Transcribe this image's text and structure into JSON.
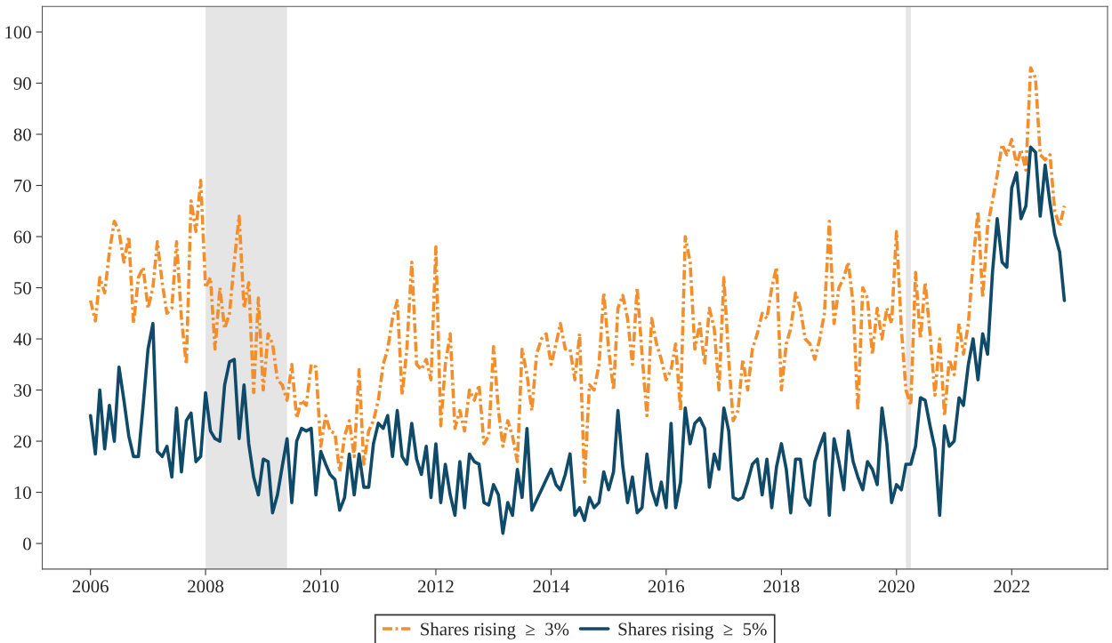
{
  "chart_data": {
    "type": "line",
    "x": [
      "2006-01",
      "2006-02",
      "2006-03",
      "2006-04",
      "2006-05",
      "2006-06",
      "2006-07",
      "2006-08",
      "2006-09",
      "2006-10",
      "2006-11",
      "2006-12",
      "2007-01",
      "2007-02",
      "2007-03",
      "2007-04",
      "2007-05",
      "2007-06",
      "2007-07",
      "2007-08",
      "2007-09",
      "2007-10",
      "2007-11",
      "2007-12",
      "2008-01",
      "2008-02",
      "2008-03",
      "2008-04",
      "2008-05",
      "2008-06",
      "2008-07",
      "2008-08",
      "2008-09",
      "2008-10",
      "2008-11",
      "2008-12",
      "2009-01",
      "2009-02",
      "2009-03",
      "2009-04",
      "2009-05",
      "2009-06",
      "2009-07",
      "2009-08",
      "2009-09",
      "2009-10",
      "2009-11",
      "2009-12",
      "2010-01",
      "2010-02",
      "2010-03",
      "2010-04",
      "2010-05",
      "2010-06",
      "2010-07",
      "2010-08",
      "2010-09",
      "2010-10",
      "2010-11",
      "2010-12",
      "2011-01",
      "2011-02",
      "2011-03",
      "2011-04",
      "2011-05",
      "2011-06",
      "2011-07",
      "2011-08",
      "2011-09",
      "2011-10",
      "2011-11",
      "2011-12",
      "2012-01",
      "2012-02",
      "2012-03",
      "2012-04",
      "2012-05",
      "2012-06",
      "2012-07",
      "2012-08",
      "2012-09",
      "2012-10",
      "2012-11",
      "2012-12",
      "2013-01",
      "2013-02",
      "2013-03",
      "2013-04",
      "2013-05",
      "2013-06",
      "2013-07",
      "2013-08",
      "2013-09",
      "2013-10",
      "2013-11",
      "2013-12",
      "2014-01",
      "2014-02",
      "2014-03",
      "2014-04",
      "2014-05",
      "2014-06",
      "2014-07",
      "2014-08",
      "2014-09",
      "2014-10",
      "2014-11",
      "2014-12",
      "2015-01",
      "2015-02",
      "2015-03",
      "2015-04",
      "2015-05",
      "2015-06",
      "2015-07",
      "2015-08",
      "2015-09",
      "2015-10",
      "2015-11",
      "2015-12",
      "2016-01",
      "2016-02",
      "2016-03",
      "2016-04",
      "2016-05",
      "2016-06",
      "2016-07",
      "2016-08",
      "2016-09",
      "2016-10",
      "2016-11",
      "2016-12",
      "2017-01",
      "2017-02",
      "2017-03",
      "2017-04",
      "2017-05",
      "2017-06",
      "2017-07",
      "2017-08",
      "2017-09",
      "2017-10",
      "2017-11",
      "2017-12",
      "2018-01",
      "2018-02",
      "2018-03",
      "2018-04",
      "2018-05",
      "2018-06",
      "2018-07",
      "2018-08",
      "2018-09",
      "2018-10",
      "2018-11",
      "2018-12",
      "2019-01",
      "2019-02",
      "2019-03",
      "2019-04",
      "2019-05",
      "2019-06",
      "2019-07",
      "2019-08",
      "2019-09",
      "2019-10",
      "2019-11",
      "2019-12",
      "2020-01",
      "2020-02",
      "2020-03",
      "2020-04",
      "2020-05",
      "2020-06",
      "2020-07",
      "2020-08",
      "2020-09",
      "2020-10",
      "2020-11",
      "2020-12",
      "2021-01",
      "2021-02",
      "2021-03",
      "2021-04",
      "2021-05",
      "2021-06",
      "2021-07",
      "2021-08",
      "2021-09",
      "2021-10",
      "2021-11",
      "2021-12",
      "2022-01",
      "2022-02",
      "2022-03",
      "2022-04",
      "2022-05",
      "2022-06",
      "2022-07",
      "2022-08",
      "2022-09",
      "2022-10",
      "2022-11",
      "2022-12"
    ],
    "series": [
      {
        "name": "Shares rising  ≥  3%",
        "color": "#f28e2b",
        "line_style": "dashdot",
        "values": [
          47.5,
          43.5,
          52,
          49,
          57,
          63,
          61,
          55,
          60,
          43,
          52,
          54,
          46,
          50,
          59,
          51,
          45,
          46,
          59,
          44,
          35,
          67,
          61,
          71,
          50,
          52,
          38,
          50,
          42,
          45,
          55,
          64,
          46,
          51,
          29.5,
          48,
          30,
          41,
          39,
          32,
          31,
          28,
          35,
          24.5,
          28,
          27,
          35,
          34.5,
          19,
          25,
          22,
          21.5,
          14,
          21,
          24,
          17,
          34,
          15.5,
          22,
          24,
          28,
          35,
          38,
          44,
          47.5,
          29,
          38,
          55,
          35,
          34,
          36,
          32,
          58,
          23,
          35,
          41,
          22.5,
          26,
          22,
          30,
          28,
          31,
          19.5,
          21,
          38.5,
          26,
          19,
          24,
          21,
          16,
          38,
          33,
          26,
          37,
          40,
          41,
          35,
          39,
          43,
          38,
          38,
          32,
          41,
          12,
          31,
          30,
          35,
          49,
          38,
          30,
          46,
          48.5,
          44,
          35,
          50,
          37,
          25,
          44,
          39,
          36,
          32,
          34,
          39,
          26,
          60,
          55,
          38,
          43,
          35,
          46,
          42,
          30,
          52,
          36,
          24,
          26,
          36,
          30,
          38,
          41,
          45,
          44,
          50,
          54,
          30,
          39,
          42,
          49,
          46,
          40,
          39,
          36,
          40,
          45,
          63,
          43,
          50,
          52,
          55,
          47,
          26,
          50,
          48,
          37,
          46,
          40,
          46,
          43,
          61,
          42,
          30,
          27,
          53,
          40,
          51,
          41,
          29,
          40,
          25,
          36,
          33,
          43,
          37,
          43,
          55,
          65,
          48,
          62,
          67,
          72,
          78,
          76,
          79,
          74,
          77,
          73,
          93,
          91,
          76,
          75,
          76,
          65,
          62,
          66
        ]
      },
      {
        "name": "Shares rising  ≥  5%",
        "color": "#0f4a68",
        "line_style": "solid",
        "values": [
          25,
          17.5,
          30,
          18.5,
          27,
          20,
          34.5,
          28,
          21,
          17,
          17,
          27,
          38,
          43,
          18,
          17,
          19,
          13,
          26.5,
          14,
          24,
          25.5,
          16,
          17,
          29.5,
          22,
          20.5,
          20,
          31,
          35.5,
          36,
          20.5,
          31,
          19.5,
          13,
          9.5,
          16.5,
          16,
          6,
          9.5,
          15,
          20.5,
          8,
          20,
          22.5,
          22,
          22.5,
          9.5,
          18,
          15.5,
          13.5,
          12.5,
          6.5,
          9,
          17.5,
          9.5,
          17.5,
          11,
          11,
          19.5,
          23.5,
          22.5,
          25,
          17,
          26,
          17,
          15.5,
          23.5,
          16.5,
          13.5,
          19,
          9,
          19.5,
          8,
          15.5,
          9.5,
          5.5,
          16,
          7,
          17.5,
          16,
          15.5,
          8,
          7.5,
          11.5,
          9.5,
          2,
          8,
          5.5,
          14.5,
          9,
          22.5,
          6.5,
          8.5,
          10.5,
          12.5,
          14.5,
          11.5,
          10.5,
          13.5,
          17.5,
          5.5,
          7,
          4.5,
          9,
          7,
          8,
          14,
          10.5,
          14,
          26,
          15,
          8,
          13,
          6,
          7,
          17.5,
          10.5,
          7.5,
          12,
          7,
          23.5,
          7,
          12,
          26.5,
          19.5,
          23.5,
          24.5,
          22.5,
          11,
          17.5,
          14.5,
          26.5,
          22,
          9,
          8.5,
          9,
          12,
          15.5,
          16.5,
          9.5,
          16.5,
          7,
          15,
          19.5,
          14.5,
          6,
          16.5,
          16.5,
          9,
          7.5,
          16,
          19,
          21.5,
          5.5,
          20.5,
          16,
          10.5,
          22,
          16,
          13,
          10.5,
          16,
          14.5,
          11.5,
          26.5,
          19.5,
          8,
          11.5,
          10.5,
          15.5,
          15.5,
          19,
          28.5,
          28,
          23,
          18.5,
          5.5,
          23,
          19,
          20,
          28.5,
          27,
          35,
          40,
          32,
          41,
          37,
          53,
          63.5,
          55,
          54,
          69.5,
          72.5,
          63.5,
          66,
          77.5,
          76.5,
          64,
          74,
          66.5,
          60.5,
          57,
          47.5
        ]
      }
    ],
    "xlim": [
      "2005-03",
      "2023-09"
    ],
    "xticks": [
      {
        "value": "2006",
        "label": "2006"
      },
      {
        "value": "2008",
        "label": "2008"
      },
      {
        "value": "2010",
        "label": "2010"
      },
      {
        "value": "2012",
        "label": "2012"
      },
      {
        "value": "2014",
        "label": "2014"
      },
      {
        "value": "2016",
        "label": "2016"
      },
      {
        "value": "2018",
        "label": "2018"
      },
      {
        "value": "2020",
        "label": "2020"
      },
      {
        "value": "2022",
        "label": "2022"
      }
    ],
    "ylim": [
      -5,
      105
    ],
    "yticks": [
      0,
      10,
      20,
      30,
      40,
      50,
      60,
      70,
      80,
      90,
      100
    ],
    "bands": [
      {
        "axis": "x",
        "from": "2008-01",
        "to": "2009-06",
        "color": "#e5e5e5"
      },
      {
        "axis": "x",
        "from": "2020-03",
        "to": "2020-04",
        "color": "#e5e5e5"
      }
    ],
    "grid": false,
    "legend": "bottom"
  }
}
